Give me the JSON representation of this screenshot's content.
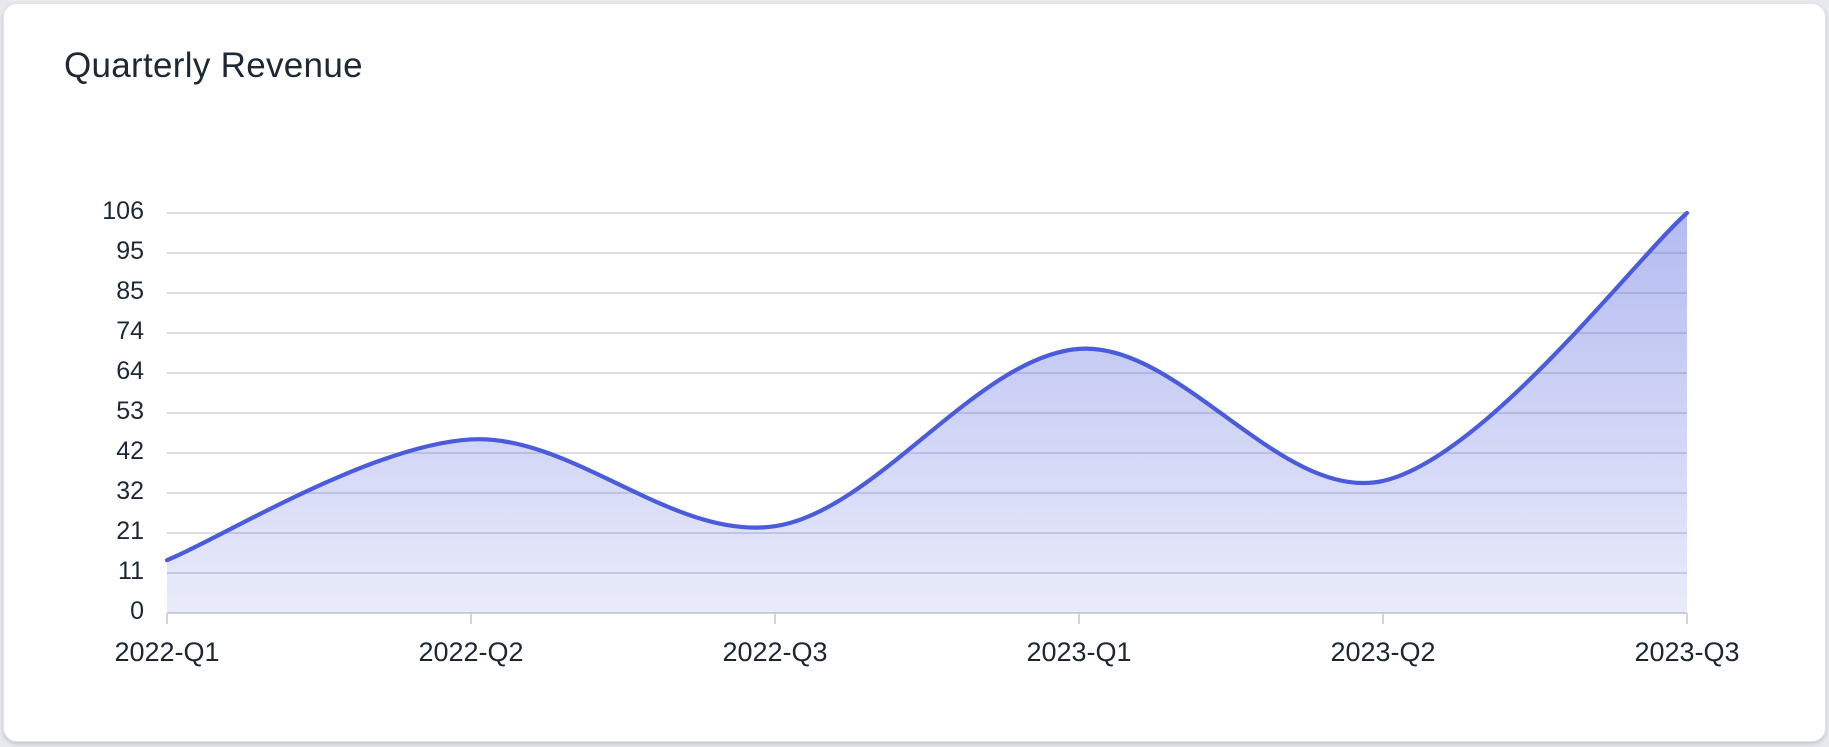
{
  "card": {
    "title": "Quarterly Revenue"
  },
  "chart_data": {
    "type": "line",
    "smooth": true,
    "title": "Quarterly Revenue",
    "categories": [
      "2022-Q1",
      "2022-Q2",
      "2022-Q3",
      "2023-Q1",
      "2023-Q2",
      "2023-Q3"
    ],
    "series": [
      {
        "name": "Quarterly Revenue",
        "values": [
          14,
          46,
          23,
          70,
          35,
          106
        ]
      }
    ],
    "xlabel": "",
    "ylabel": "",
    "ylim": [
      0,
      106
    ],
    "y_tick_labels": [
      "0",
      "11",
      "21",
      "32",
      "42",
      "53",
      "64",
      "74",
      "85",
      "95",
      "106"
    ],
    "grid": true,
    "legend_position": "none",
    "colors": {
      "line": "#4a5cdb",
      "area_top": "#4c5cdb",
      "area_top_alpha": 0.42,
      "area_bottom": "#4c5cdb",
      "area_bottom_alpha": 0.12,
      "gridline": "#dcdde1",
      "axis_line": "#d3d4d9",
      "axis_label": "#1d2733",
      "title": "#1c2834",
      "card_background": "#ffffff",
      "page_background": "#e7e9ee"
    }
  }
}
